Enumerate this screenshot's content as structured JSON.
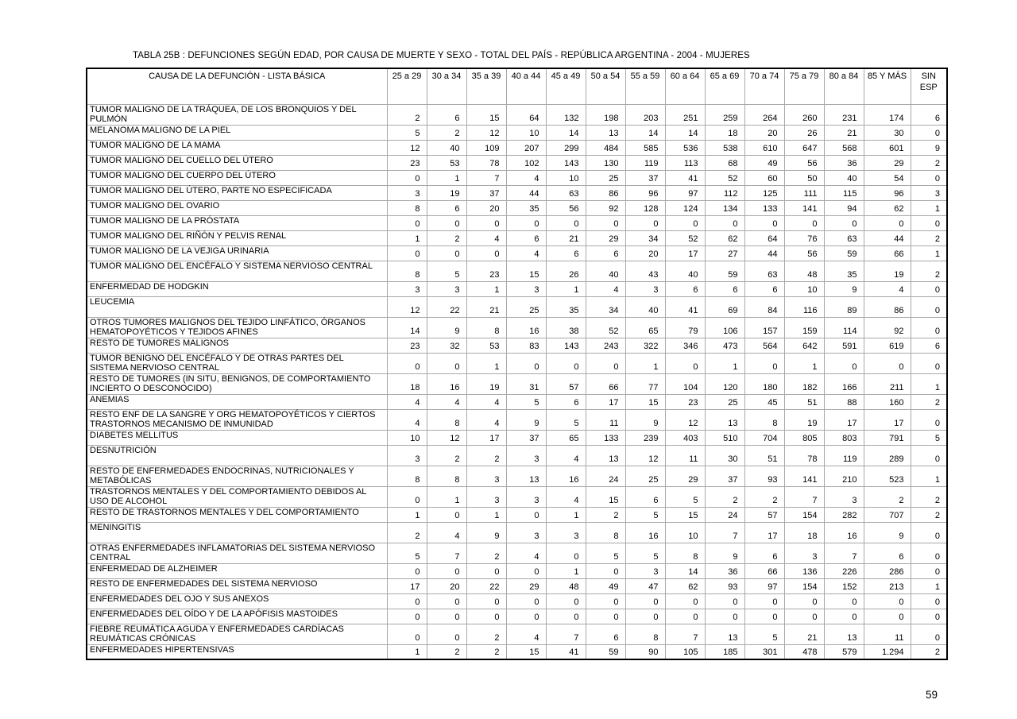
{
  "page": {
    "title": "TABLA 25B : DEFUNCIONES SEGÚN EDAD, POR CAUSA DE MUERTE Y SEXO - TOTAL DEL PAÍS - REPÚBLICA ARGENTINA - 2004 - MUJERES",
    "page_number": "59"
  },
  "table": {
    "header": {
      "cause_label": "CAUSA DE LA DEFUNCIÓN - LISTA BÁSICA",
      "age_columns": [
        "25 a 29",
        "30 a 34",
        "35 a 39",
        "40 a 44",
        "45 a 49",
        "50 a 54",
        "55 a 59",
        "60 a 64",
        "65 a 69",
        "70 a 74",
        "75 a 79",
        "80 a 84",
        "85 Y MÁS",
        "SIN ESP"
      ]
    },
    "rows": [
      {
        "cause": "TUMOR MALIGNO DE LA TRÁQUEA,  DE LOS BRONQUIOS Y DEL PULMÓN",
        "values": [
          2,
          6,
          15,
          64,
          132,
          198,
          203,
          251,
          259,
          264,
          260,
          231,
          174,
          6
        ]
      },
      {
        "cause": "MELANOMA MALIGNO DE LA PIEL",
        "values": [
          5,
          2,
          12,
          10,
          14,
          13,
          14,
          14,
          18,
          20,
          26,
          21,
          30,
          0
        ]
      },
      {
        "cause": "TUMOR MALIGNO DE LA MAMA",
        "values": [
          12,
          40,
          109,
          207,
          299,
          484,
          585,
          536,
          538,
          610,
          647,
          568,
          601,
          9
        ]
      },
      {
        "cause": "TUMOR MALIGNO DEL CUELLO DEL ÚTERO",
        "values": [
          23,
          53,
          78,
          102,
          143,
          130,
          119,
          113,
          68,
          49,
          56,
          36,
          29,
          2
        ]
      },
      {
        "cause": "TUMOR MALIGNO DEL CUERPO DEL ÚTERO",
        "values": [
          0,
          1,
          7,
          4,
          10,
          25,
          37,
          41,
          52,
          60,
          50,
          40,
          54,
          0
        ]
      },
      {
        "cause": "TUMOR MALIGNO DEL ÚTERO, PARTE NO ESPECIFICADA",
        "values": [
          3,
          19,
          37,
          44,
          63,
          86,
          96,
          97,
          112,
          125,
          111,
          115,
          96,
          3
        ]
      },
      {
        "cause": "TUMOR MALIGNO DEL OVARIO",
        "values": [
          8,
          6,
          20,
          35,
          56,
          92,
          128,
          124,
          134,
          133,
          141,
          94,
          62,
          1
        ]
      },
      {
        "cause": "TUMOR MALIGNO DE LA PRÓSTATA",
        "values": [
          0,
          0,
          0,
          0,
          0,
          0,
          0,
          0,
          0,
          0,
          0,
          0,
          0,
          0
        ]
      },
      {
        "cause": "TUMOR MALIGNO DEL RIÑÓN Y PELVIS RENAL",
        "values": [
          1,
          2,
          4,
          6,
          21,
          29,
          34,
          52,
          62,
          64,
          76,
          63,
          44,
          2
        ]
      },
      {
        "cause": "TUMOR MALIGNO DE LA VEJIGA URINARIA",
        "values": [
          0,
          0,
          0,
          4,
          6,
          6,
          20,
          17,
          27,
          44,
          56,
          59,
          66,
          1
        ]
      },
      {
        "cause": "TUMOR MALIGNO DEL ENCÉFALO Y SISTEMA NERVIOSO CENTRAL",
        "tall": true,
        "values": [
          8,
          5,
          23,
          15,
          26,
          40,
          43,
          40,
          59,
          63,
          48,
          35,
          19,
          2
        ]
      },
      {
        "cause": "ENFERMEDAD DE HODGKIN",
        "values": [
          3,
          3,
          1,
          3,
          1,
          4,
          3,
          6,
          6,
          6,
          10,
          9,
          4,
          0
        ]
      },
      {
        "cause": "LEUCEMIA",
        "tall": true,
        "values": [
          12,
          22,
          21,
          25,
          35,
          34,
          40,
          41,
          69,
          84,
          116,
          89,
          86,
          0
        ]
      },
      {
        "cause": "OTROS TUMORES MALIGNOS DEL TEJIDO LINFÁTICO, ÓRGANOS HEMATOPOYÉTICOS Y TEJIDOS AFINES",
        "values": [
          14,
          9,
          8,
          16,
          38,
          52,
          65,
          79,
          106,
          157,
          159,
          114,
          92,
          0
        ]
      },
      {
        "cause": "RESTO DE TUMORES MALIGNOS",
        "values": [
          23,
          32,
          53,
          83,
          143,
          243,
          322,
          346,
          473,
          564,
          642,
          591,
          619,
          6
        ]
      },
      {
        "cause": "TUMOR BENIGNO DEL ENCÉFALO Y DE OTRAS PARTES DEL SISTEMA NERVIOSO CENTRAL",
        "values": [
          0,
          0,
          1,
          0,
          0,
          0,
          1,
          0,
          1,
          0,
          1,
          0,
          0,
          0
        ]
      },
      {
        "cause": "RESTO DE TUMORES (IN SITU, BENIGNOS, DE COMPORTAMIENTO INCIERTO O DESCONOCIDO)",
        "values": [
          18,
          16,
          19,
          31,
          57,
          66,
          77,
          104,
          120,
          180,
          182,
          166,
          211,
          1
        ]
      },
      {
        "cause": "ANEMIAS",
        "values": [
          4,
          4,
          4,
          5,
          6,
          17,
          15,
          23,
          25,
          45,
          51,
          88,
          160,
          2
        ]
      },
      {
        "cause": "RESTO ENF DE LA SANGRE Y ORG HEMATOPOYÉTICOS Y CIERTOS TRASTORNOS MECANISMO DE  INMUNIDAD",
        "values": [
          4,
          8,
          4,
          9,
          5,
          11,
          9,
          12,
          13,
          8,
          19,
          17,
          17,
          0
        ]
      },
      {
        "cause": "DIABETES MELLITUS",
        "values": [
          10,
          12,
          17,
          37,
          65,
          133,
          239,
          403,
          510,
          704,
          805,
          803,
          791,
          5
        ]
      },
      {
        "cause": "DESNUTRICIÓN",
        "tall": true,
        "values": [
          3,
          2,
          2,
          3,
          4,
          13,
          12,
          11,
          30,
          51,
          78,
          119,
          289,
          0
        ]
      },
      {
        "cause": "RESTO DE ENFERMEDADES ENDOCRINAS, NUTRICIONALES Y METABÓLICAS",
        "values": [
          8,
          8,
          3,
          13,
          16,
          24,
          25,
          29,
          37,
          93,
          141,
          210,
          523,
          1
        ]
      },
      {
        "cause": "TRASTORNOS MENTALES Y DEL COMPORTAMIENTO DEBIDOS AL USO DE ALCOHOL",
        "values": [
          0,
          1,
          3,
          3,
          4,
          15,
          6,
          5,
          2,
          2,
          7,
          3,
          2,
          2
        ]
      },
      {
        "cause": "RESTO DE TRASTORNOS MENTALES Y DEL COMPORTAMIENTO",
        "values": [
          1,
          0,
          1,
          0,
          1,
          2,
          5,
          15,
          24,
          57,
          154,
          282,
          707,
          2
        ]
      },
      {
        "cause": "MENINGITIS",
        "tall": true,
        "values": [
          2,
          4,
          9,
          3,
          3,
          8,
          16,
          10,
          7,
          17,
          18,
          16,
          9,
          0
        ]
      },
      {
        "cause": "OTRAS ENFERMEDADES INFLAMATORIAS DEL SISTEMA NERVIOSO CENTRAL",
        "values": [
          5,
          7,
          2,
          4,
          0,
          5,
          5,
          8,
          9,
          6,
          3,
          7,
          6,
          0
        ]
      },
      {
        "cause": "ENFERMEDAD DE ALZHEIMER",
        "values": [
          0,
          0,
          0,
          0,
          1,
          0,
          3,
          14,
          36,
          66,
          136,
          226,
          286,
          0
        ]
      },
      {
        "cause": "RESTO DE ENFERMEDADES DEL SISTEMA NERVIOSO",
        "values": [
          17,
          20,
          22,
          29,
          48,
          49,
          47,
          62,
          93,
          97,
          154,
          152,
          213,
          1
        ]
      },
      {
        "cause": "ENFERMEDADES DEL OJO Y SUS ANEXOS",
        "values": [
          0,
          0,
          0,
          0,
          0,
          0,
          0,
          0,
          0,
          0,
          0,
          0,
          0,
          0
        ]
      },
      {
        "cause": "ENFERMEDADES DEL OÍDO Y DE LA APÓFISIS MASTOIDES",
        "values": [
          0,
          0,
          0,
          0,
          0,
          0,
          0,
          0,
          0,
          0,
          0,
          0,
          0,
          0
        ]
      },
      {
        "cause": "FIEBRE REUMÁTICA AGUDA Y ENFERMEDADES CARDÍACAS REUMÁTICAS CRÓNICAS",
        "values": [
          0,
          0,
          2,
          4,
          7,
          6,
          8,
          7,
          13,
          5,
          21,
          13,
          11,
          0
        ]
      },
      {
        "cause": "ENFERMEDADES HIPERTENSIVAS",
        "values": [
          1,
          2,
          2,
          15,
          41,
          59,
          90,
          105,
          185,
          301,
          478,
          579,
          "1.294",
          2
        ]
      }
    ]
  }
}
